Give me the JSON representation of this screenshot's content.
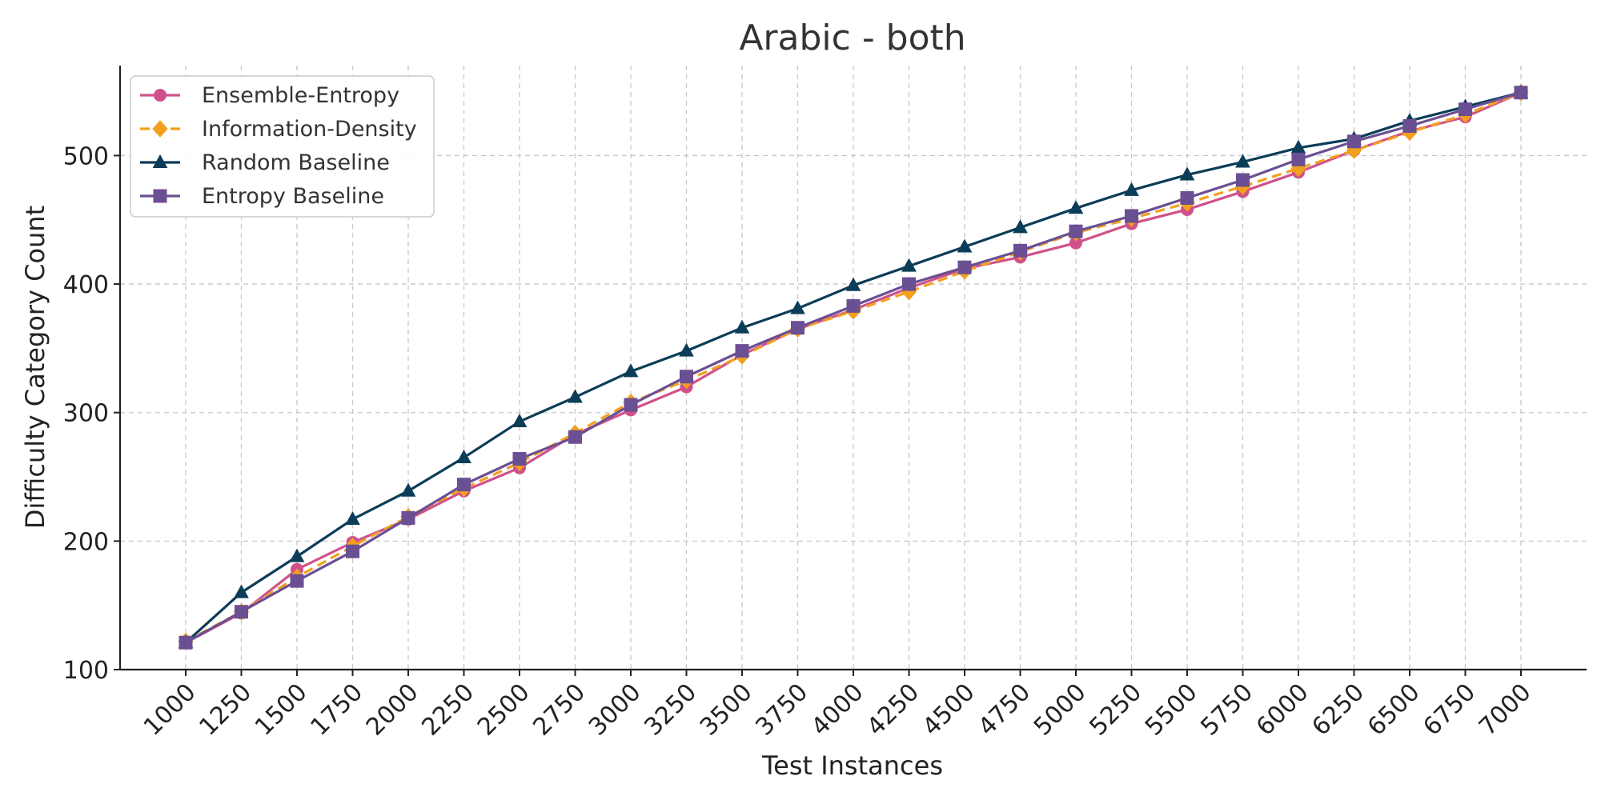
{
  "chart_data": {
    "type": "line",
    "title": "Arabic - both",
    "xlabel": "Test Instances",
    "ylabel": "Difficulty Category Count",
    "x": [
      1000,
      1250,
      1500,
      1750,
      2000,
      2250,
      2500,
      2750,
      3000,
      3250,
      3500,
      3750,
      4000,
      4250,
      4500,
      4750,
      5000,
      5250,
      5500,
      5750,
      6000,
      6250,
      6500,
      6750,
      7000
    ],
    "x_tick_labels": [
      "1000",
      "1250",
      "1500",
      "1750",
      "2000",
      "2250",
      "2500",
      "2750",
      "3000",
      "3250",
      "3500",
      "3750",
      "4000",
      "4250",
      "4500",
      "4750",
      "5000",
      "5250",
      "5500",
      "5750",
      "6000",
      "6250",
      "6500",
      "6750",
      "7000"
    ],
    "ylim": [
      100,
      570
    ],
    "y_ticks": [
      100,
      200,
      300,
      400,
      500
    ],
    "y_tick_labels": [
      "100",
      "200",
      "300",
      "400",
      "500"
    ],
    "grid": true,
    "legend_position": "top-left",
    "series": [
      {
        "name": "Ensemble-Entropy",
        "color": "#d0518a",
        "marker": "circle",
        "dashed": false,
        "values": [
          121,
          144,
          178,
          199,
          217,
          239,
          257,
          283,
          302,
          320,
          345,
          365,
          380,
          397,
          412,
          421,
          432,
          447,
          458,
          472,
          487,
          504,
          519,
          530,
          549
        ]
      },
      {
        "name": "Information-Density",
        "color": "#f2a01e",
        "marker": "diamond",
        "dashed": true,
        "values": [
          122,
          145,
          172,
          196,
          219,
          241,
          261,
          284,
          308,
          325,
          344,
          365,
          379,
          394,
          410,
          425,
          440,
          451,
          463,
          476,
          490,
          504,
          518,
          532,
          549
        ]
      },
      {
        "name": "Random Baseline",
        "color": "#0c3d58",
        "marker": "triangle",
        "dashed": false,
        "values": [
          121,
          160,
          188,
          217,
          239,
          265,
          293,
          312,
          332,
          348,
          366,
          381,
          399,
          414,
          429,
          444,
          459,
          473,
          485,
          495,
          506,
          513,
          527,
          538,
          549
        ]
      },
      {
        "name": "Entropy Baseline",
        "color": "#6b4f93",
        "marker": "square",
        "dashed": false,
        "values": [
          121,
          145,
          169,
          192,
          218,
          244,
          264,
          281,
          306,
          328,
          348,
          366,
          383,
          400,
          413,
          426,
          441,
          453,
          467,
          481,
          497,
          511,
          523,
          536,
          549
        ]
      }
    ]
  }
}
